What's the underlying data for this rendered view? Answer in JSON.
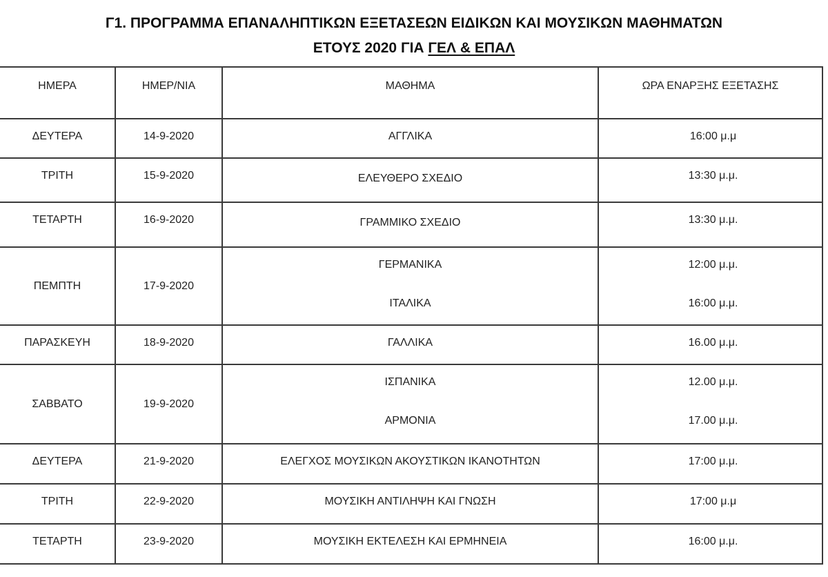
{
  "title": {
    "line1": "Γ1. ΠΡΟΓΡΑΜΜΑ ΕΠΑΝΑΛΗΠΤΙΚΩΝ ΕΞΕΤΑΣΕΩΝ ΕΙΔΙΚΩΝ ΚΑΙ ΜΟΥΣΙΚΩΝ ΜΑΘΗΜΑΤΩΝ",
    "line2_prefix": "ΕΤΟΥΣ 2020 ΓΙΑ ",
    "line2_underlined": "ΓΕΛ & ΕΠΑΛ"
  },
  "table": {
    "headers": [
      "ΗΜΕΡΑ",
      "ΗΜΕΡ/ΝΙΑ",
      "ΜΑΘΗΜΑ",
      "ΩΡΑ ΕΝΑΡΞΗΣ ΕΞΕΤΑΣΗΣ"
    ],
    "rows": [
      {
        "day": "ΔΕΥΤΕΡΑ",
        "date": "14-9-2020",
        "subjects": [
          "ΑΓΓΛΙΚΑ"
        ],
        "times": [
          "16:00 μ.μ"
        ]
      },
      {
        "day": "ΤΡΙΤΗ",
        "date": "15-9-2020",
        "subjects": [
          "ΕΛΕΥΘΕΡΟ ΣΧΕΔΙΟ"
        ],
        "times": [
          "13:30 μ.μ."
        ]
      },
      {
        "day": "ΤΕΤΑΡΤΗ",
        "date": "16-9-2020",
        "subjects": [
          "ΓΡΑΜΜΙΚΟ ΣΧΕΔΙΟ"
        ],
        "times": [
          "13:30 μ.μ."
        ]
      },
      {
        "day": "ΠΕΜΠΤΗ",
        "date": "17-9-2020",
        "subjects": [
          "ΓΕΡΜΑΝΙΚΑ",
          "ΙΤΑΛΙΚΑ"
        ],
        "times": [
          "12:00 μ.μ.",
          "16:00 μ.μ."
        ]
      },
      {
        "day": "ΠΑΡΑΣΚΕΥΗ",
        "date": "18-9-2020",
        "subjects": [
          "ΓΑΛΛΙΚΑ"
        ],
        "times": [
          "16.00 μ.μ."
        ]
      },
      {
        "day": "ΣΑΒΒΑΤΟ",
        "date": "19-9-2020",
        "subjects": [
          "ΙΣΠΑΝΙΚΑ",
          "ΑΡΜΟΝΙΑ"
        ],
        "times": [
          "12.00 μ.μ.",
          "17.00 μ.μ."
        ]
      },
      {
        "day": "ΔΕΥΤΕΡΑ",
        "date": "21-9-2020",
        "subjects": [
          "ΕΛΕΓΧΟΣ ΜΟΥΣΙΚΩΝ ΑΚΟΥΣΤΙΚΩΝ ΙΚΑΝΟΤΗΤΩΝ"
        ],
        "times": [
          "17:00 μ.μ."
        ]
      },
      {
        "day": "ΤΡΙΤΗ",
        "date": "22-9-2020",
        "subjects": [
          "ΜΟΥΣΙΚΗ ΑΝΤΙΛΗΨΗ ΚΑΙ ΓΝΩΣΗ"
        ],
        "times": [
          "17:00 μ.μ"
        ]
      },
      {
        "day": "ΤΕΤΑΡΤΗ",
        "date": "23-9-2020",
        "subjects": [
          "ΜΟΥΣΙΚΗ ΕΚΤΕΛΕΣΗ ΚΑΙ ΕΡΜΗΝΕΙΑ"
        ],
        "times": [
          "16:00 μ.μ."
        ]
      }
    ]
  }
}
